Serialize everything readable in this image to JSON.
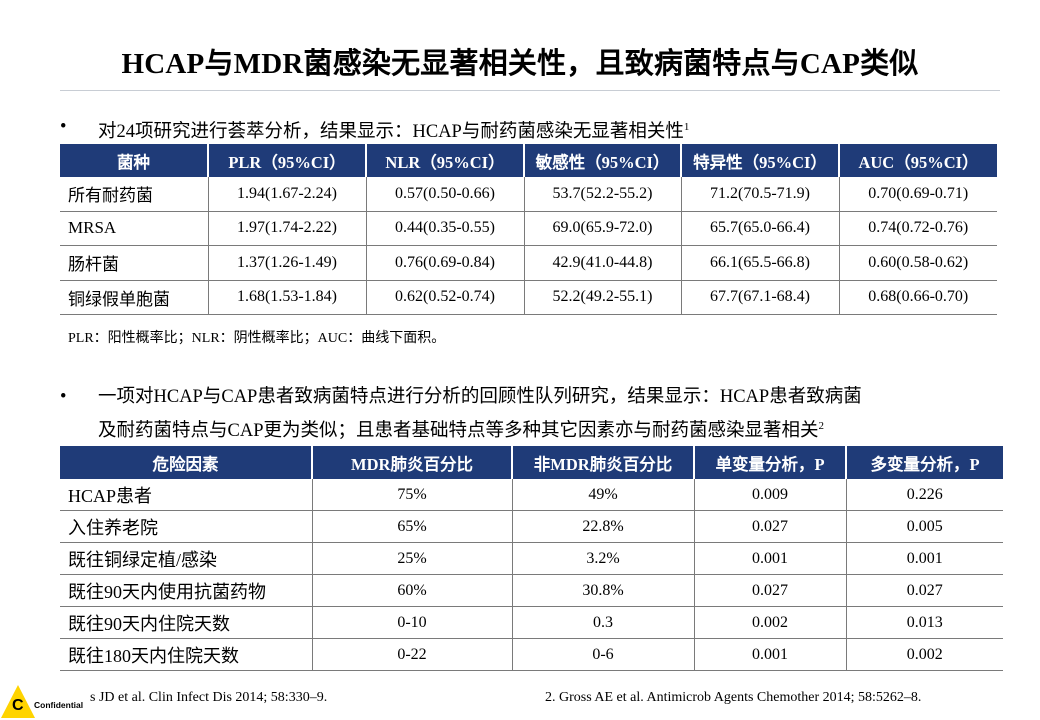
{
  "slide": {
    "title": "HCAP与MDR菌感染无显著相关性，且致病菌特点与CAP类似"
  },
  "bullet1": {
    "symbol": "•",
    "text": "对24项研究进行荟萃分析，结果显示：HCAP与耐药菌感染无显著相关性",
    "sup": "1"
  },
  "table1": {
    "headers": [
      "菌种",
      "PLR（95%CI）",
      "NLR（95%CI）",
      "敏感性（95%CI）",
      "特异性（95%CI）",
      "AUC（95%CI）"
    ],
    "rows": [
      [
        "所有耐药菌",
        "1.94(1.67-2.24)",
        "0.57(0.50-0.66)",
        "53.7(52.2-55.2)",
        "71.2(70.5-71.9)",
        "0.70(0.69-0.71)"
      ],
      [
        "MRSA",
        "1.97(1.74-2.22)",
        "0.44(0.35-0.55)",
        "69.0(65.9-72.0)",
        "65.7(65.0-66.4)",
        "0.74(0.72-0.76)"
      ],
      [
        "肠杆菌",
        "1.37(1.26-1.49)",
        "0.76(0.69-0.84)",
        "42.9(41.0-44.8)",
        "66.1(65.5-66.8)",
        "0.60(0.58-0.62)"
      ],
      [
        "铜绿假单胞菌",
        "1.68(1.53-1.84)",
        "0.62(0.52-0.74)",
        "52.2(49.2-55.1)",
        "67.7(67.1-68.4)",
        "0.68(0.66-0.70)"
      ]
    ],
    "footnote": "PLR：阳性概率比；NLR：阴性概率比；AUC：曲线下面积。"
  },
  "bullet2": {
    "symbol": "•",
    "line1": "一项对HCAP与CAP患者致病菌特点进行分析的回顾性队列研究，结果显示：HCAP患者致病菌",
    "line2": "及耐药菌特点与CAP更为类似；且患者基础特点等多种其它因素亦与耐药菌感染显著相关",
    "sup": "2"
  },
  "table2": {
    "headers": [
      "危险因素",
      "MDR肺炎百分比",
      "非MDR肺炎百分比",
      "单变量分析，P",
      "多变量分析，P"
    ],
    "rows": [
      [
        "HCAP患者",
        "75%",
        "49%",
        "0.009",
        "0.226"
      ],
      [
        "入住养老院",
        "65%",
        "22.8%",
        "0.027",
        "0.005"
      ],
      [
        "既往铜绿定植/感染",
        "25%",
        "3.2%",
        "0.001",
        "0.001"
      ],
      [
        "既往90天内使用抗菌药物",
        "60%",
        "30.8%",
        "0.027",
        "0.027"
      ],
      [
        "既往90天内住院天数",
        "0-10",
        "0.3",
        "0.002",
        "0.013"
      ],
      [
        "既往180天内住院天数",
        "0-22",
        "0-6",
        "0.001",
        "0.002"
      ]
    ]
  },
  "references": {
    "ref1": "s JD et al. Clin Infect Dis 2014; 58:330–9.",
    "ref2": "2. Gross AE et al. Antimicrob Agents Chemother 2014; 58:5262–8."
  },
  "logo": {
    "letter": "C",
    "label": "Confidential",
    "color": "#ffd400"
  },
  "colors": {
    "header_bg": "#1f3b78",
    "header_text": "#ffffff"
  }
}
